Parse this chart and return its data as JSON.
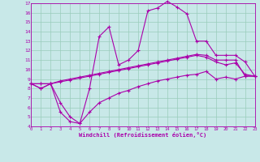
{
  "xlabel": "Windchill (Refroidissement éolien,°C)",
  "bg_color": "#c8e8e8",
  "line_color": "#aa00aa",
  "grid_color": "#99ccbb",
  "xlim": [
    0,
    23
  ],
  "ylim": [
    4,
    17
  ],
  "xticks": [
    0,
    1,
    2,
    3,
    4,
    5,
    6,
    7,
    8,
    9,
    10,
    11,
    12,
    13,
    14,
    15,
    16,
    17,
    18,
    19,
    20,
    21,
    22,
    23
  ],
  "yticks": [
    4,
    5,
    6,
    7,
    8,
    9,
    10,
    11,
    12,
    13,
    14,
    15,
    16,
    17
  ],
  "series": [
    [
      8.5,
      8.0,
      8.5,
      5.5,
      4.5,
      4.3,
      8.0,
      13.5,
      14.5,
      10.5,
      11.0,
      12.0,
      16.2,
      16.5,
      17.2,
      16.6,
      15.9,
      13.0,
      13.0,
      11.5,
      11.5,
      11.5,
      10.8,
      9.3
    ],
    [
      8.5,
      8.5,
      8.5,
      8.8,
      9.0,
      9.2,
      9.4,
      9.6,
      9.8,
      10.0,
      10.2,
      10.4,
      10.6,
      10.8,
      11.0,
      11.2,
      11.4,
      11.6,
      11.5,
      11.0,
      11.0,
      11.0,
      9.3,
      9.3
    ],
    [
      8.5,
      8.5,
      8.5,
      8.7,
      8.9,
      9.1,
      9.3,
      9.5,
      9.7,
      9.9,
      10.1,
      10.3,
      10.5,
      10.7,
      10.9,
      11.1,
      11.3,
      11.5,
      11.3,
      10.8,
      10.5,
      10.7,
      9.5,
      9.3
    ],
    [
      8.5,
      8.0,
      8.5,
      6.5,
      5.0,
      4.3,
      5.5,
      6.5,
      7.0,
      7.5,
      7.8,
      8.2,
      8.5,
      8.8,
      9.0,
      9.2,
      9.4,
      9.5,
      9.8,
      9.0,
      9.2,
      9.0,
      9.3,
      9.3
    ]
  ]
}
